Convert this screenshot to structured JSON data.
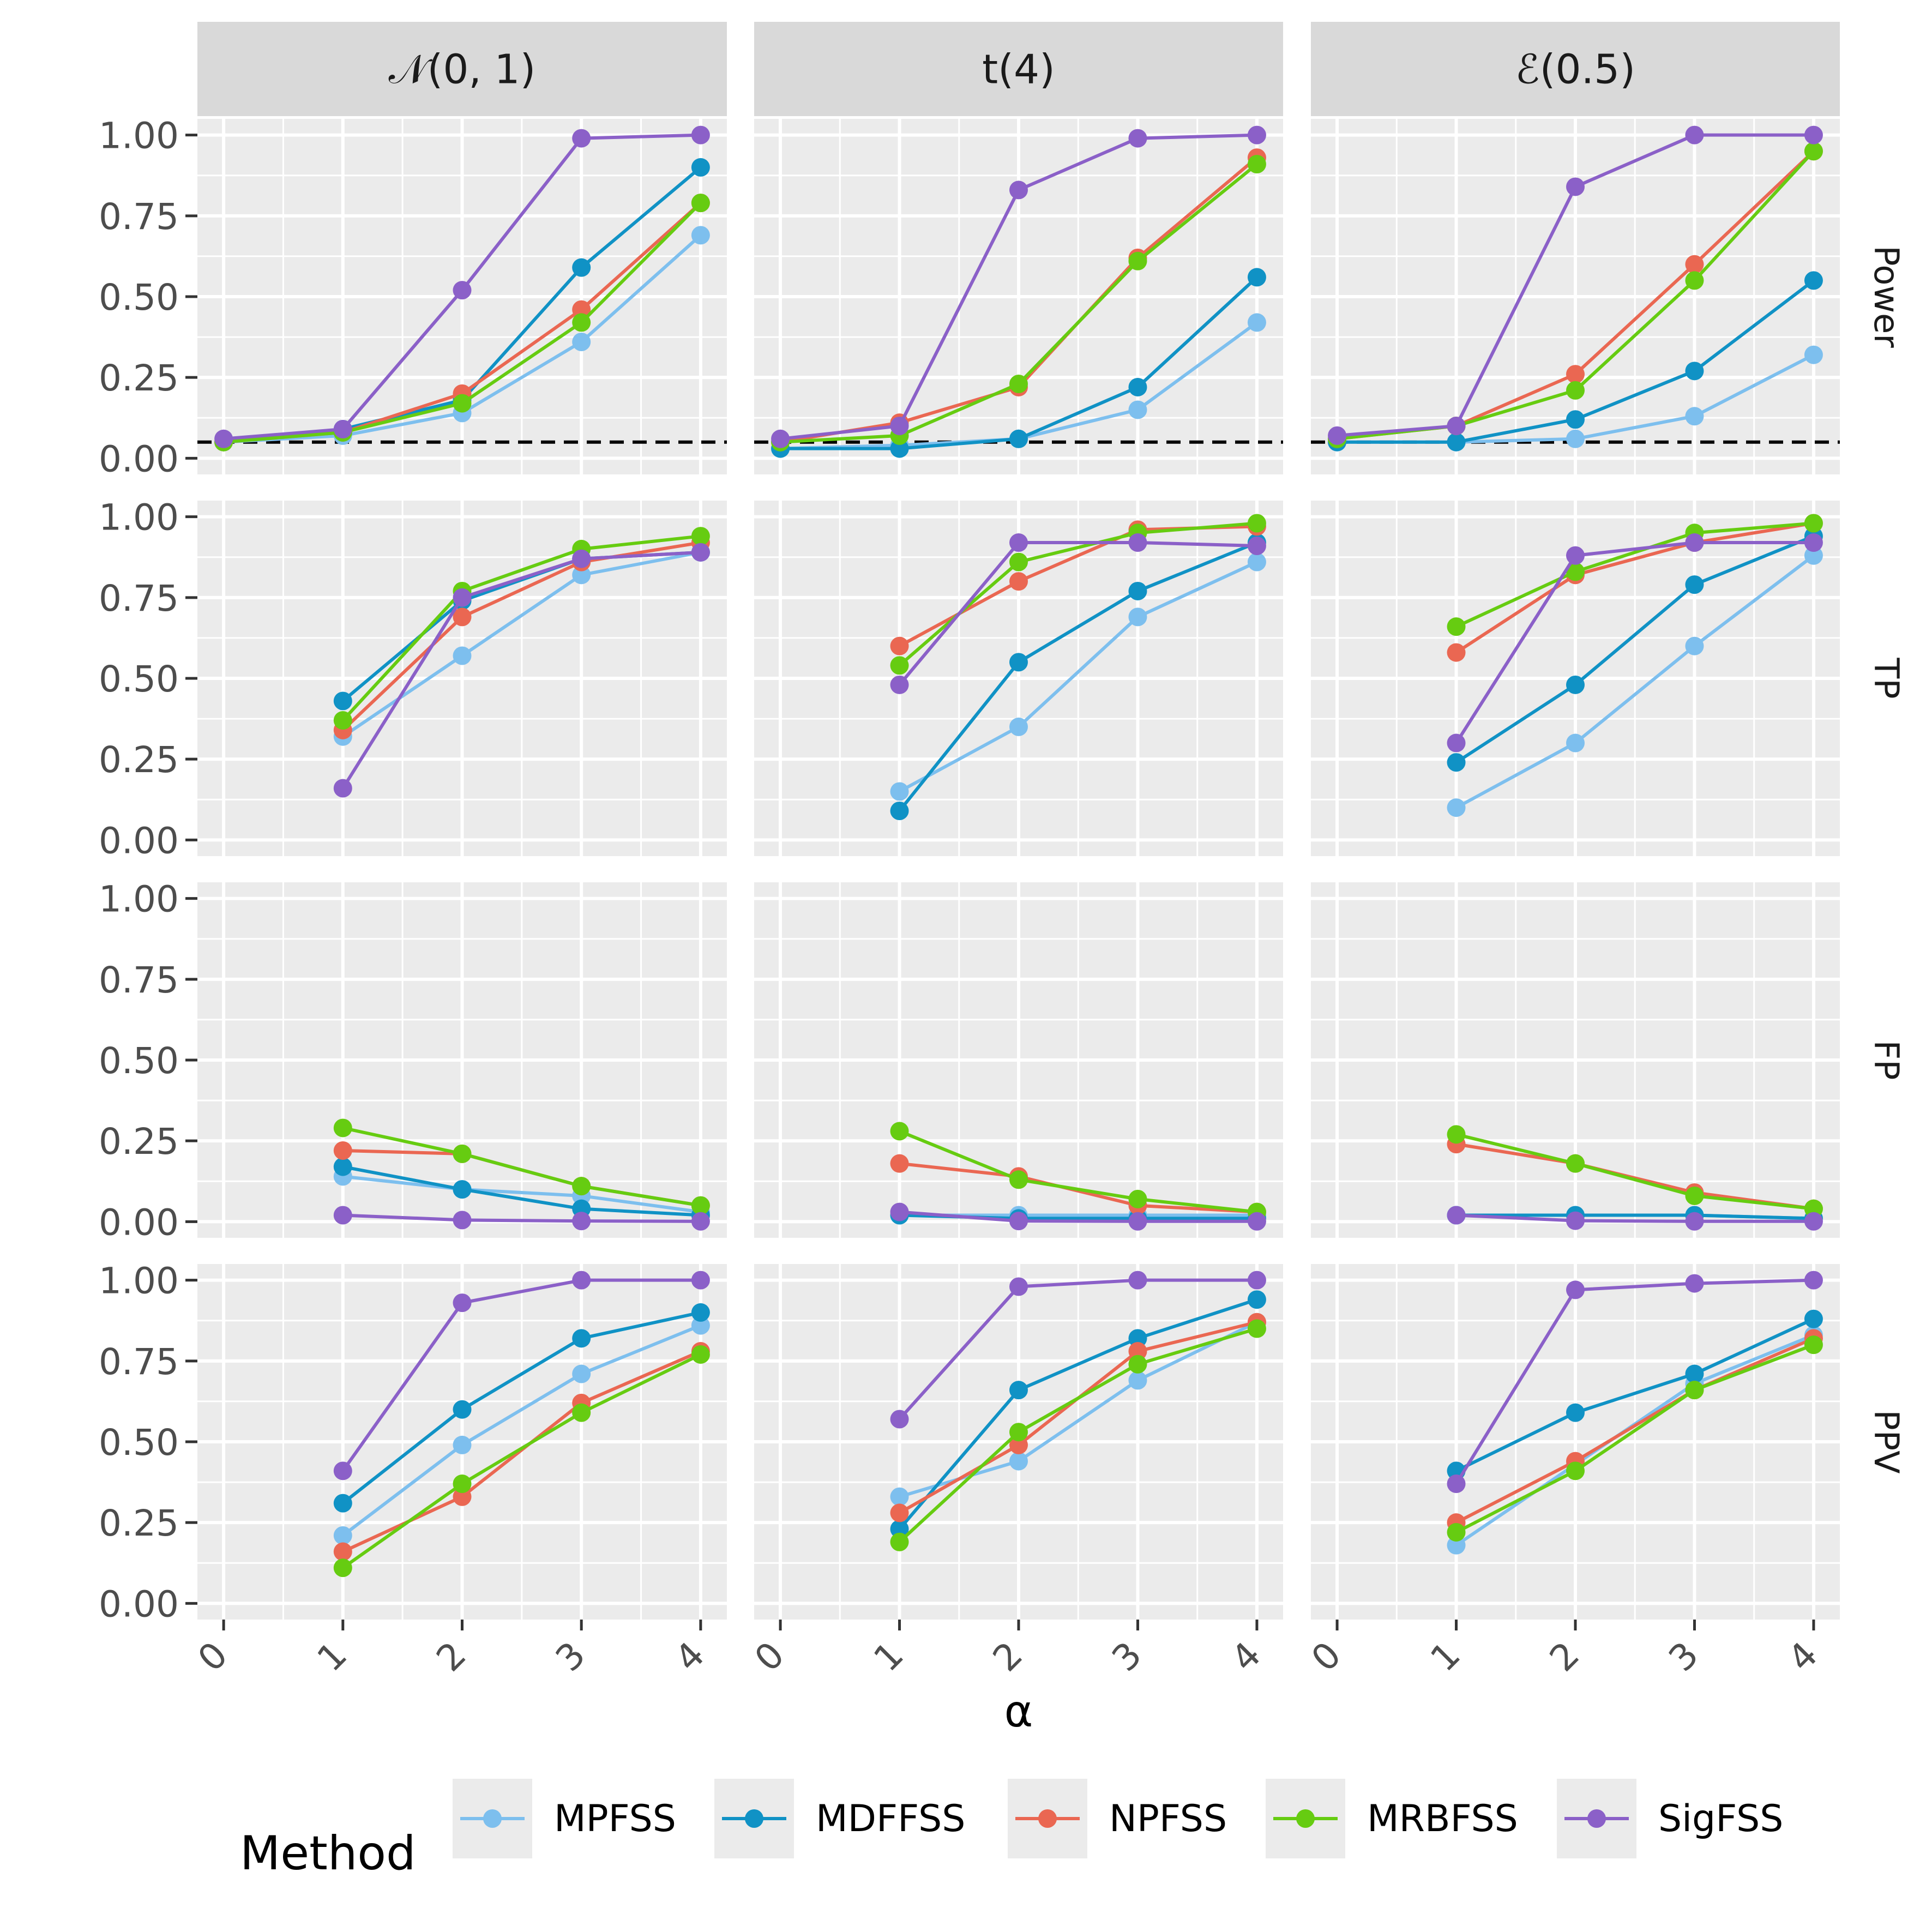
{
  "chart_data": {
    "type": "line",
    "x": [
      0,
      1,
      2,
      3,
      4
    ],
    "xlabel": "α",
    "ylim": [
      0,
      1
    ],
    "y_ticks": [
      "0.00",
      "0.25",
      "0.50",
      "0.75",
      "1.00"
    ],
    "x_ticks": [
      "0",
      "1",
      "2",
      "3",
      "4"
    ],
    "columns": [
      "𝒩(0, 1)",
      "t(4)",
      "ℰ(0.5)"
    ],
    "rows": [
      "Power",
      "TP",
      "FP",
      "PPV"
    ],
    "reference_line": {
      "row": "Power",
      "y": 0.05,
      "style": "dashed"
    },
    "legend": {
      "title": "Method",
      "position": "bottom",
      "entries": [
        "MPFSS",
        "MDFFSS",
        "NPFSS",
        "MRBFSS",
        "SigFSS"
      ]
    },
    "series_colors": {
      "MPFSS": "#7DBFEE",
      "MDFFSS": "#1092C5",
      "NPFSS": "#EA6752",
      "MRBFSS": "#66CC11",
      "SigFSS": "#8B60C8"
    },
    "panels": [
      {
        "row": "Power",
        "column": "𝒩(0, 1)",
        "series": [
          {
            "name": "MPFSS",
            "values": [
              0.05,
              0.07,
              0.14,
              0.36,
              0.69
            ]
          },
          {
            "name": "MDFFSS",
            "values": [
              0.05,
              0.09,
              0.18,
              0.59,
              0.9
            ]
          },
          {
            "name": "NPFSS",
            "values": [
              0.05,
              0.08,
              0.2,
              0.46,
              0.79
            ]
          },
          {
            "name": "MRBFSS",
            "values": [
              0.05,
              0.08,
              0.17,
              0.42,
              0.79
            ]
          },
          {
            "name": "SigFSS",
            "values": [
              0.06,
              0.09,
              0.52,
              0.99,
              1.0
            ]
          }
        ]
      },
      {
        "row": "Power",
        "column": "t(4)",
        "series": [
          {
            "name": "MPFSS",
            "values": [
              0.03,
              0.04,
              0.06,
              0.15,
              0.42
            ]
          },
          {
            "name": "MDFFSS",
            "values": [
              0.03,
              0.03,
              0.06,
              0.22,
              0.56
            ]
          },
          {
            "name": "NPFSS",
            "values": [
              0.05,
              0.11,
              0.22,
              0.62,
              0.93
            ]
          },
          {
            "name": "MRBFSS",
            "values": [
              0.05,
              0.07,
              0.23,
              0.61,
              0.91
            ]
          },
          {
            "name": "SigFSS",
            "values": [
              0.06,
              0.1,
              0.83,
              0.99,
              1.0
            ]
          }
        ]
      },
      {
        "row": "Power",
        "column": "ℰ(0.5)",
        "series": [
          {
            "name": "MPFSS",
            "values": [
              0.05,
              0.05,
              0.06,
              0.13,
              0.32
            ]
          },
          {
            "name": "MDFFSS",
            "values": [
              0.05,
              0.05,
              0.12,
              0.27,
              0.55
            ]
          },
          {
            "name": "NPFSS",
            "values": [
              0.06,
              0.1,
              0.26,
              0.6,
              0.95
            ]
          },
          {
            "name": "MRBFSS",
            "values": [
              0.06,
              0.1,
              0.21,
              0.55,
              0.95
            ]
          },
          {
            "name": "SigFSS",
            "values": [
              0.07,
              0.1,
              0.84,
              1.0,
              1.0
            ]
          }
        ]
      },
      {
        "row": "TP",
        "column": "𝒩(0, 1)",
        "series": [
          {
            "name": "MPFSS",
            "values": [
              null,
              0.32,
              0.57,
              0.82,
              0.89
            ]
          },
          {
            "name": "MDFFSS",
            "values": [
              null,
              0.43,
              0.74,
              0.87,
              0.89
            ]
          },
          {
            "name": "NPFSS",
            "values": [
              null,
              0.34,
              0.69,
              0.86,
              0.92
            ]
          },
          {
            "name": "MRBFSS",
            "values": [
              null,
              0.37,
              0.77,
              0.9,
              0.94
            ]
          },
          {
            "name": "SigFSS",
            "values": [
              null,
              0.16,
              0.75,
              0.87,
              0.89
            ]
          }
        ]
      },
      {
        "row": "TP",
        "column": "t(4)",
        "series": [
          {
            "name": "MPFSS",
            "values": [
              null,
              0.15,
              0.35,
              0.69,
              0.86
            ]
          },
          {
            "name": "MDFFSS",
            "values": [
              null,
              0.09,
              0.55,
              0.77,
              0.92
            ]
          },
          {
            "name": "NPFSS",
            "values": [
              null,
              0.6,
              0.8,
              0.96,
              0.97
            ]
          },
          {
            "name": "MRBFSS",
            "values": [
              null,
              0.54,
              0.86,
              0.95,
              0.98
            ]
          },
          {
            "name": "SigFSS",
            "values": [
              null,
              0.48,
              0.92,
              0.92,
              0.91
            ]
          }
        ]
      },
      {
        "row": "TP",
        "column": "ℰ(0.5)",
        "series": [
          {
            "name": "MPFSS",
            "values": [
              null,
              0.1,
              0.3,
              0.6,
              0.88
            ]
          },
          {
            "name": "MDFFSS",
            "values": [
              null,
              0.24,
              0.48,
              0.79,
              0.94
            ]
          },
          {
            "name": "NPFSS",
            "values": [
              null,
              0.58,
              0.82,
              0.92,
              0.98
            ]
          },
          {
            "name": "MRBFSS",
            "values": [
              null,
              0.66,
              0.83,
              0.95,
              0.98
            ]
          },
          {
            "name": "SigFSS",
            "values": [
              null,
              0.3,
              0.88,
              0.92,
              0.92
            ]
          }
        ]
      },
      {
        "row": "FP",
        "column": "𝒩(0, 1)",
        "series": [
          {
            "name": "MPFSS",
            "values": [
              null,
              0.14,
              0.1,
              0.08,
              0.03
            ]
          },
          {
            "name": "MDFFSS",
            "values": [
              null,
              0.17,
              0.1,
              0.04,
              0.02
            ]
          },
          {
            "name": "NPFSS",
            "values": [
              null,
              0.22,
              0.21,
              0.11,
              0.05
            ]
          },
          {
            "name": "MRBFSS",
            "values": [
              null,
              0.29,
              0.21,
              0.11,
              0.05
            ]
          },
          {
            "name": "SigFSS",
            "values": [
              null,
              0.02,
              0.005,
              0.002,
              0.001
            ]
          }
        ]
      },
      {
        "row": "FP",
        "column": "t(4)",
        "series": [
          {
            "name": "MPFSS",
            "values": [
              null,
              0.02,
              0.02,
              0.02,
              0.02
            ]
          },
          {
            "name": "MDFFSS",
            "values": [
              null,
              0.02,
              0.01,
              0.01,
              0.01
            ]
          },
          {
            "name": "NPFSS",
            "values": [
              null,
              0.18,
              0.14,
              0.05,
              0.03
            ]
          },
          {
            "name": "MRBFSS",
            "values": [
              null,
              0.28,
              0.13,
              0.07,
              0.03
            ]
          },
          {
            "name": "SigFSS",
            "values": [
              null,
              0.03,
              0.002,
              0.001,
              0.001
            ]
          }
        ]
      },
      {
        "row": "FP",
        "column": "ℰ(0.5)",
        "series": [
          {
            "name": "MPFSS",
            "values": [
              null,
              0.02,
              0.02,
              0.02,
              0.01
            ]
          },
          {
            "name": "MDFFSS",
            "values": [
              null,
              0.02,
              0.02,
              0.02,
              0.01
            ]
          },
          {
            "name": "NPFSS",
            "values": [
              null,
              0.24,
              0.18,
              0.09,
              0.04
            ]
          },
          {
            "name": "MRBFSS",
            "values": [
              null,
              0.27,
              0.18,
              0.08,
              0.04
            ]
          },
          {
            "name": "SigFSS",
            "values": [
              null,
              0.02,
              0.003,
              0.001,
              0.001
            ]
          }
        ]
      },
      {
        "row": "PPV",
        "column": "𝒩(0, 1)",
        "series": [
          {
            "name": "MPFSS",
            "values": [
              null,
              0.21,
              0.49,
              0.71,
              0.86
            ]
          },
          {
            "name": "MDFFSS",
            "values": [
              null,
              0.31,
              0.6,
              0.82,
              0.9
            ]
          },
          {
            "name": "NPFSS",
            "values": [
              null,
              0.16,
              0.33,
              0.62,
              0.78
            ]
          },
          {
            "name": "MRBFSS",
            "values": [
              null,
              0.11,
              0.37,
              0.59,
              0.77
            ]
          },
          {
            "name": "SigFSS",
            "values": [
              null,
              0.41,
              0.93,
              1.0,
              1.0
            ]
          }
        ]
      },
      {
        "row": "PPV",
        "column": "t(4)",
        "series": [
          {
            "name": "MPFSS",
            "values": [
              null,
              0.33,
              0.44,
              0.69,
              0.87
            ]
          },
          {
            "name": "MDFFSS",
            "values": [
              null,
              0.23,
              0.66,
              0.82,
              0.94
            ]
          },
          {
            "name": "NPFSS",
            "values": [
              null,
              0.28,
              0.49,
              0.78,
              0.87
            ]
          },
          {
            "name": "MRBFSS",
            "values": [
              null,
              0.19,
              0.53,
              0.74,
              0.85
            ]
          },
          {
            "name": "SigFSS",
            "values": [
              null,
              0.57,
              0.98,
              1.0,
              1.0
            ]
          }
        ]
      },
      {
        "row": "PPV",
        "column": "ℰ(0.5)",
        "series": [
          {
            "name": "MPFSS",
            "values": [
              null,
              0.18,
              0.43,
              0.68,
              0.83
            ]
          },
          {
            "name": "MDFFSS",
            "values": [
              null,
              0.41,
              0.59,
              0.71,
              0.88
            ]
          },
          {
            "name": "NPFSS",
            "values": [
              null,
              0.25,
              0.44,
              0.66,
              0.82
            ]
          },
          {
            "name": "MRBFSS",
            "values": [
              null,
              0.22,
              0.41,
              0.66,
              0.8
            ]
          },
          {
            "name": "SigFSS",
            "values": [
              null,
              0.37,
              0.97,
              0.99,
              1.0
            ]
          }
        ]
      }
    ]
  }
}
